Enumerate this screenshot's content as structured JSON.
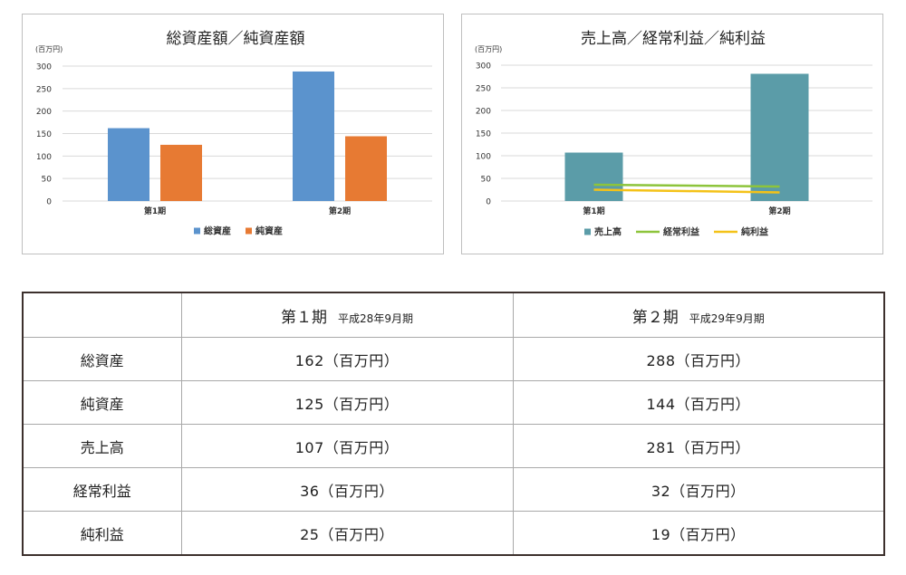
{
  "colors": {
    "blue": "#5b93cd",
    "orange": "#e77a33",
    "teal": "#5b9ca8",
    "green": "#8dc43b",
    "yellow": "#f4c218",
    "grid": "#d9d9d9",
    "border": "#3c302d"
  },
  "chart_data": [
    {
      "type": "bar",
      "title": "総資産額／純資産額",
      "unit_label": "(百万円)",
      "categories": [
        "第1期",
        "第2期"
      ],
      "ylim": [
        0,
        300
      ],
      "yticks": [
        0,
        50,
        100,
        150,
        200,
        250,
        300
      ],
      "grid": true,
      "legend_position": "bottom",
      "series": [
        {
          "name": "総資産",
          "values": [
            162,
            288
          ],
          "color": "#5b93cd"
        },
        {
          "name": "純資産",
          "values": [
            125,
            144
          ],
          "color": "#e77a33"
        }
      ]
    },
    {
      "type": "bar",
      "title": "売上高／経常利益／純利益",
      "unit_label": "(百万円)",
      "categories": [
        "第1期",
        "第2期"
      ],
      "ylim": [
        0,
        300
      ],
      "yticks": [
        0,
        50,
        100,
        150,
        200,
        250,
        300
      ],
      "grid": true,
      "legend_position": "bottom",
      "series": [
        {
          "name": "売上高",
          "kind": "bar",
          "values": [
            107,
            281
          ],
          "color": "#5b9ca8"
        },
        {
          "name": "経常利益",
          "kind": "line",
          "values": [
            36,
            32
          ],
          "color": "#8dc43b"
        },
        {
          "name": "純利益",
          "kind": "line",
          "values": [
            25,
            19
          ],
          "color": "#f4c218"
        }
      ]
    }
  ],
  "table": {
    "corner": "",
    "periods": [
      {
        "label": "第１期",
        "sub": "平成28年9月期"
      },
      {
        "label": "第２期",
        "sub": "平成29年9月期"
      }
    ],
    "rows": [
      {
        "label": "総資産",
        "values": [
          "162（百万円）",
          "288（百万円）"
        ]
      },
      {
        "label": "純資産",
        "values": [
          "125（百万円）",
          "144（百万円）"
        ]
      },
      {
        "label": "売上高",
        "values": [
          "107（百万円）",
          "281（百万円）"
        ]
      },
      {
        "label": "経常利益",
        "values": [
          "36（百万円）",
          "32（百万円）"
        ]
      },
      {
        "label": "純利益",
        "values": [
          "25（百万円）",
          "19（百万円）"
        ]
      }
    ]
  }
}
